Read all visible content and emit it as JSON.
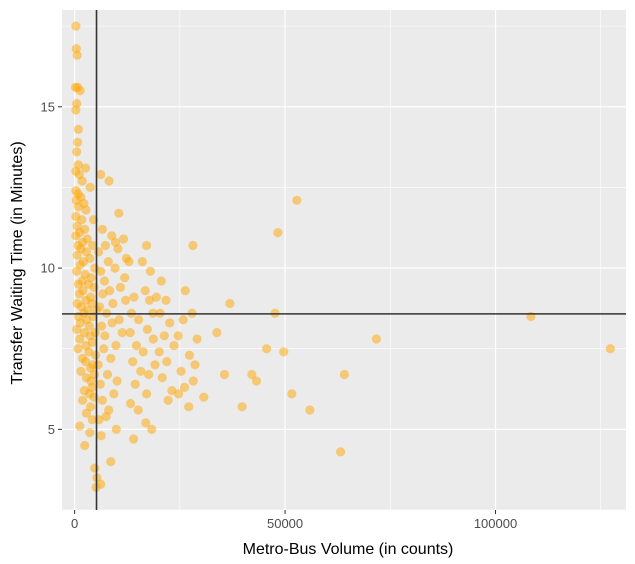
{
  "chart_data": {
    "type": "scatter",
    "xlabel": "Metro-Bus Volume (in counts)",
    "ylabel": "Transfer Waiting Time (in Minutes)",
    "xlim": [
      -3000,
      131000
    ],
    "ylim": [
      2.5,
      18.0
    ],
    "x_ticks": [
      0,
      50000,
      100000
    ],
    "x_tick_labels": [
      "0",
      "50000",
      "100000"
    ],
    "y_ticks": [
      5,
      10,
      15
    ],
    "y_tick_labels": [
      "5",
      "10",
      "15"
    ],
    "grid": true,
    "vline_x": 5200,
    "hline_y": 8.58,
    "colors": {
      "point": "#FFA500",
      "panel": "#EBEBEB",
      "grid": "#FFFFFF",
      "reference_line": "#333333"
    },
    "points": [
      [
        300,
        17.5
      ],
      [
        400,
        16.8
      ],
      [
        600,
        16.6
      ],
      [
        200,
        15.6
      ],
      [
        700,
        15.6
      ],
      [
        500,
        15.1
      ],
      [
        300,
        14.9
      ],
      [
        1300,
        15.5
      ],
      [
        900,
        14.3
      ],
      [
        700,
        13.9
      ],
      [
        500,
        13.6
      ],
      [
        900,
        13.2
      ],
      [
        2600,
        13.1
      ],
      [
        300,
        13.0
      ],
      [
        1100,
        12.9
      ],
      [
        1800,
        12.7
      ],
      [
        3700,
        12.5
      ],
      [
        300,
        12.4
      ],
      [
        800,
        12.3
      ],
      [
        1500,
        12.2
      ],
      [
        400,
        12.1
      ],
      [
        2200,
        12.0
      ],
      [
        900,
        11.9
      ],
      [
        2700,
        11.8
      ],
      [
        300,
        11.6
      ],
      [
        1700,
        11.5
      ],
      [
        4500,
        11.5
      ],
      [
        600,
        11.3
      ],
      [
        2400,
        11.2
      ],
      [
        1200,
        11.1
      ],
      [
        300,
        11.0
      ],
      [
        3000,
        10.9
      ],
      [
        1900,
        10.8
      ],
      [
        800,
        10.7
      ],
      [
        4300,
        10.7
      ],
      [
        1500,
        10.6
      ],
      [
        2800,
        10.5
      ],
      [
        600,
        10.4
      ],
      [
        3600,
        10.3
      ],
      [
        2100,
        10.2
      ],
      [
        1300,
        10.1
      ],
      [
        4800,
        10.0
      ],
      [
        500,
        9.9
      ],
      [
        2500,
        9.8
      ],
      [
        3900,
        9.7
      ],
      [
        1800,
        9.6
      ],
      [
        900,
        9.5
      ],
      [
        3300,
        9.5
      ],
      [
        4600,
        9.4
      ],
      [
        2000,
        9.3
      ],
      [
        1100,
        9.2
      ],
      [
        3800,
        9.1
      ],
      [
        2700,
        9.0
      ],
      [
        600,
        8.9
      ],
      [
        4100,
        8.9
      ],
      [
        1600,
        8.8
      ],
      [
        3100,
        8.7
      ],
      [
        5200,
        8.7
      ],
      [
        2200,
        8.6
      ],
      [
        900,
        8.5
      ],
      [
        4400,
        8.5
      ],
      [
        2900,
        8.4
      ],
      [
        1400,
        8.3
      ],
      [
        3500,
        8.2
      ],
      [
        500,
        8.1
      ],
      [
        4900,
        8.0
      ],
      [
        2300,
        8.0
      ],
      [
        3700,
        7.9
      ],
      [
        1200,
        7.8
      ],
      [
        4200,
        7.7
      ],
      [
        2700,
        7.6
      ],
      [
        800,
        7.5
      ],
      [
        3400,
        7.4
      ],
      [
        5000,
        7.3
      ],
      [
        1900,
        7.2
      ],
      [
        2600,
        7.1
      ],
      [
        4300,
        7.0
      ],
      [
        3800,
        6.9
      ],
      [
        1500,
        6.8
      ],
      [
        4700,
        6.7
      ],
      [
        2800,
        6.6
      ],
      [
        3900,
        6.5
      ],
      [
        4100,
        6.3
      ],
      [
        2300,
        6.2
      ],
      [
        3500,
        6.1
      ],
      [
        4600,
        6.0
      ],
      [
        1900,
        5.9
      ],
      [
        3800,
        5.7
      ],
      [
        2800,
        5.5
      ],
      [
        4200,
        5.3
      ],
      [
        1200,
        5.1
      ],
      [
        3600,
        4.9
      ],
      [
        2400,
        4.5
      ],
      [
        6300,
        4.8
      ],
      [
        5800,
        5.3
      ],
      [
        7500,
        5.4
      ],
      [
        8100,
        5.6
      ],
      [
        6600,
        5.9
      ],
      [
        9300,
        6.1
      ],
      [
        6100,
        6.4
      ],
      [
        7800,
        6.7
      ],
      [
        10100,
        6.5
      ],
      [
        5600,
        7.0
      ],
      [
        8600,
        7.2
      ],
      [
        6900,
        7.5
      ],
      [
        9800,
        7.6
      ],
      [
        7200,
        7.9
      ],
      [
        11300,
        8.0
      ],
      [
        6400,
        8.2
      ],
      [
        8900,
        8.3
      ],
      [
        10600,
        8.4
      ],
      [
        7600,
        8.6
      ],
      [
        5900,
        8.8
      ],
      [
        9100,
        8.9
      ],
      [
        12100,
        9.0
      ],
      [
        6700,
        9.2
      ],
      [
        8300,
        9.3
      ],
      [
        10900,
        9.4
      ],
      [
        7100,
        9.6
      ],
      [
        11900,
        9.7
      ],
      [
        6200,
        9.9
      ],
      [
        9600,
        10.0
      ],
      [
        8000,
        10.2
      ],
      [
        12300,
        10.3
      ],
      [
        5700,
        10.5
      ],
      [
        10300,
        10.6
      ],
      [
        7300,
        10.7
      ],
      [
        11600,
        10.9
      ],
      [
        8800,
        11.0
      ],
      [
        6600,
        11.2
      ],
      [
        10500,
        11.7
      ],
      [
        8200,
        12.7
      ],
      [
        9700,
        10.8
      ],
      [
        6200,
        12.9
      ],
      [
        12900,
        10.2
      ],
      [
        14100,
        9.1
      ],
      [
        13500,
        8.6
      ],
      [
        15200,
        8.4
      ],
      [
        13200,
        8.0
      ],
      [
        14700,
        7.6
      ],
      [
        16300,
        7.4
      ],
      [
        13800,
        7.1
      ],
      [
        15700,
        6.8
      ],
      [
        14400,
        6.4
      ],
      [
        17100,
        6.1
      ],
      [
        13300,
        5.8
      ],
      [
        15100,
        5.6
      ],
      [
        16900,
        5.2
      ],
      [
        14000,
        4.7
      ],
      [
        18300,
        5.0
      ],
      [
        17600,
        6.7
      ],
      [
        19100,
        7.0
      ],
      [
        18700,
        7.8
      ],
      [
        17300,
        8.1
      ],
      [
        18600,
        8.6
      ],
      [
        17800,
        9.0
      ],
      [
        16800,
        9.3
      ],
      [
        19400,
        9.1
      ],
      [
        18000,
        9.9
      ],
      [
        16100,
        10.2
      ],
      [
        17100,
        10.7
      ],
      [
        20600,
        9.6
      ],
      [
        21700,
        9.0
      ],
      [
        20300,
        8.6
      ],
      [
        22600,
        8.3
      ],
      [
        21300,
        7.9
      ],
      [
        20100,
        7.4
      ],
      [
        23600,
        7.6
      ],
      [
        21900,
        7.1
      ],
      [
        20800,
        6.6
      ],
      [
        23100,
        6.2
      ],
      [
        22200,
        5.9
      ],
      [
        24700,
        6.1
      ],
      [
        26100,
        6.3
      ],
      [
        25300,
        6.8
      ],
      [
        24600,
        7.9
      ],
      [
        25800,
        8.4
      ],
      [
        26300,
        9.3
      ],
      [
        27900,
        8.6
      ],
      [
        27300,
        7.3
      ],
      [
        28600,
        7.0
      ],
      [
        28200,
        6.5
      ],
      [
        27100,
        5.7
      ],
      [
        29100,
        7.8
      ],
      [
        28100,
        10.7
      ],
      [
        30700,
        6.0
      ],
      [
        33800,
        8.0
      ],
      [
        35600,
        6.7
      ],
      [
        36900,
        8.9
      ],
      [
        39800,
        5.7
      ],
      [
        42100,
        6.7
      ],
      [
        43200,
        6.5
      ],
      [
        45600,
        7.5
      ],
      [
        47600,
        8.6
      ],
      [
        48300,
        11.1
      ],
      [
        49700,
        7.4
      ],
      [
        52800,
        12.1
      ],
      [
        51600,
        6.1
      ],
      [
        55900,
        5.6
      ],
      [
        63200,
        4.3
      ],
      [
        64100,
        6.7
      ],
      [
        71700,
        7.8
      ],
      [
        108400,
        8.5
      ],
      [
        127300,
        7.5
      ],
      [
        4800,
        3.8
      ],
      [
        5300,
        3.5
      ],
      [
        5100,
        3.2
      ],
      [
        6200,
        3.3
      ],
      [
        8600,
        4.0
      ],
      [
        9900,
        5.0
      ]
    ]
  }
}
